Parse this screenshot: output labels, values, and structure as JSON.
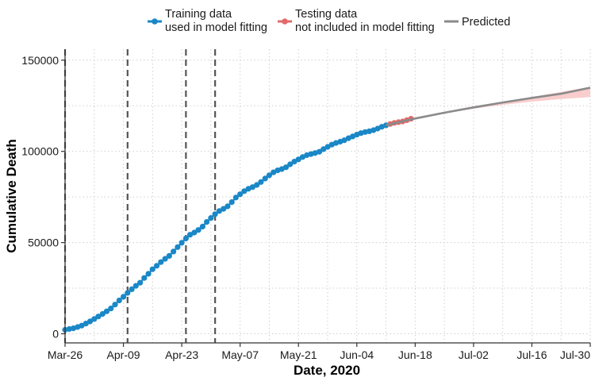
{
  "chart_data": {
    "type": "line",
    "title": "",
    "xlabel": "Date, 2020",
    "ylabel": "Cumulative Death",
    "x_ticks": [
      {
        "label": "Mar-26",
        "day": 0
      },
      {
        "label": "Apr-09",
        "day": 14
      },
      {
        "label": "Apr-23",
        "day": 28
      },
      {
        "label": "May-07",
        "day": 42
      },
      {
        "label": "May-21",
        "day": 56
      },
      {
        "label": "Jun-04",
        "day": 70
      },
      {
        "label": "Jun-18",
        "day": 84
      },
      {
        "label": "Jul-02",
        "day": 98
      },
      {
        "label": "Jul-16",
        "day": 112
      },
      {
        "label": "Jul-30",
        "day": 126
      }
    ],
    "y_ticks": [
      {
        "label": "0",
        "value": 0
      },
      {
        "label": "50000",
        "value": 50000
      },
      {
        "label": "100000",
        "value": 100000
      },
      {
        "label": "150000",
        "value": 150000
      }
    ],
    "xlim": [
      "Mar-26",
      "Jul-30"
    ],
    "ylim": [
      -5000,
      156000
    ],
    "grid": true,
    "legend_position": "top",
    "vertical_lines": [
      "Mar-26",
      "Apr-10",
      "Apr-24",
      "May-01"
    ],
    "series": [
      {
        "name": "Training data\nused in model fitting",
        "type": "line+points",
        "color": "#1a87c6",
        "points": [
          [
            "Mar-26",
            2200
          ],
          [
            "Mar-27",
            2600
          ],
          [
            "Mar-28",
            3000
          ],
          [
            "Mar-29",
            3700
          ],
          [
            "Mar-30",
            4500
          ],
          [
            "Mar-31",
            5600
          ],
          [
            "Apr-01",
            6800
          ],
          [
            "Apr-02",
            8100
          ],
          [
            "Apr-03",
            9500
          ],
          [
            "Apr-04",
            10900
          ],
          [
            "Apr-05",
            12300
          ],
          [
            "Apr-06",
            13900
          ],
          [
            "Apr-07",
            16000
          ],
          [
            "Apr-08",
            18300
          ],
          [
            "Apr-09",
            20300
          ],
          [
            "Apr-10",
            22400
          ],
          [
            "Apr-11",
            24400
          ],
          [
            "Apr-12",
            26300
          ],
          [
            "Apr-13",
            28000
          ],
          [
            "Apr-14",
            30600
          ],
          [
            "Apr-15",
            32900
          ],
          [
            "Apr-16",
            35400
          ],
          [
            "Apr-17",
            37300
          ],
          [
            "Apr-18",
            39300
          ],
          [
            "Apr-19",
            41100
          ],
          [
            "Apr-20",
            42700
          ],
          [
            "Apr-21",
            45100
          ],
          [
            "Apr-22",
            47500
          ],
          [
            "Apr-23",
            49900
          ],
          [
            "Apr-24",
            52300
          ],
          [
            "Apr-25",
            54300
          ],
          [
            "Apr-26",
            55500
          ],
          [
            "Apr-27",
            56900
          ],
          [
            "Apr-28",
            58800
          ],
          [
            "Apr-29",
            61300
          ],
          [
            "Apr-30",
            63500
          ],
          [
            "May-01",
            65600
          ],
          [
            "May-02",
            67300
          ],
          [
            "May-03",
            68500
          ],
          [
            "May-04",
            69900
          ],
          [
            "May-05",
            72200
          ],
          [
            "May-06",
            74700
          ],
          [
            "May-07",
            76500
          ],
          [
            "May-08",
            78200
          ],
          [
            "May-09",
            79500
          ],
          [
            "May-10",
            80400
          ],
          [
            "May-11",
            81600
          ],
          [
            "May-12",
            83200
          ],
          [
            "May-13",
            85100
          ],
          [
            "May-14",
            86900
          ],
          [
            "May-15",
            88500
          ],
          [
            "May-16",
            89600
          ],
          [
            "May-17",
            90300
          ],
          [
            "May-18",
            91300
          ],
          [
            "May-19",
            92900
          ],
          [
            "May-20",
            94400
          ],
          [
            "May-21",
            95600
          ],
          [
            "May-22",
            96900
          ],
          [
            "May-23",
            97900
          ],
          [
            "May-24",
            98500
          ],
          [
            "May-25",
            99100
          ],
          [
            "May-26",
            99800
          ],
          [
            "May-27",
            101200
          ],
          [
            "May-28",
            102500
          ],
          [
            "May-29",
            103700
          ],
          [
            "May-30",
            104600
          ],
          [
            "May-31",
            105300
          ],
          [
            "Jun-01",
            106100
          ],
          [
            "Jun-02",
            107200
          ],
          [
            "Jun-03",
            108200
          ],
          [
            "Jun-04",
            109200
          ],
          [
            "Jun-05",
            110000
          ],
          [
            "Jun-06",
            110600
          ],
          [
            "Jun-07",
            111000
          ],
          [
            "Jun-08",
            111600
          ],
          [
            "Jun-09",
            112500
          ],
          [
            "Jun-10",
            113500
          ],
          [
            "Jun-11",
            114300
          ]
        ]
      },
      {
        "name": "Testing data\nnot included in model fitting",
        "type": "line+points",
        "color": "#e06a6a",
        "points": [
          [
            "Jun-12",
            115000
          ],
          [
            "Jun-13",
            115600
          ],
          [
            "Jun-14",
            116000
          ],
          [
            "Jun-15",
            116400
          ],
          [
            "Jun-16",
            117100
          ],
          [
            "Jun-17",
            117900
          ]
        ]
      },
      {
        "name": "Predicted",
        "type": "line",
        "color": "#8a8a8a",
        "band_color": "#f8c8c8",
        "points": [
          [
            "Jun-11",
            114300
          ],
          [
            "Jun-18",
            118000
          ],
          [
            "Jun-25",
            121200
          ],
          [
            "Jul-02",
            124100
          ],
          [
            "Jul-09",
            126800
          ],
          [
            "Jul-16",
            129300
          ],
          [
            "Jul-23",
            131600
          ],
          [
            "Jul-30",
            134900
          ]
        ],
        "lower": [
          [
            "Jun-11",
            114300
          ],
          [
            "Jun-18",
            118000
          ],
          [
            "Jun-25",
            121000
          ],
          [
            "Jul-02",
            123400
          ],
          [
            "Jul-09",
            125500
          ],
          [
            "Jul-16",
            127300
          ],
          [
            "Jul-23",
            128700
          ],
          [
            "Jul-30",
            129800
          ]
        ],
        "upper": [
          [
            "Jun-11",
            114300
          ],
          [
            "Jun-18",
            118000
          ],
          [
            "Jun-25",
            121300
          ],
          [
            "Jul-02",
            124300
          ],
          [
            "Jul-09",
            127200
          ],
          [
            "Jul-16",
            129900
          ],
          [
            "Jul-23",
            132600
          ],
          [
            "Jul-30",
            135400
          ]
        ]
      }
    ]
  }
}
